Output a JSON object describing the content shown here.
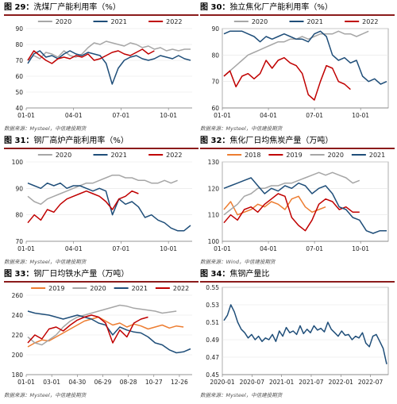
{
  "source_text": "数据来源：Mysteel，中信建投期货",
  "source_text_wind": "数据来源：Wind，中信建投期货",
  "chart_data": [
    {
      "id": "p29",
      "fig": "图 29：",
      "title": "洗煤厂产能利用率（%）",
      "type": "line",
      "source_key": "source_text",
      "ylim": [
        40,
        90
      ],
      "yticks": [
        40,
        50,
        60,
        70,
        80,
        90
      ],
      "xticks": [
        "01-01",
        "04-01",
        "07-01",
        "10-01"
      ],
      "framed": false,
      "series": [
        {
          "name": "2020",
          "color": "#a6a6a6",
          "y": [
            70,
            73,
            71,
            75,
            74,
            72,
            76,
            73,
            72,
            74,
            78,
            81,
            80,
            82,
            81,
            80,
            79,
            81,
            80,
            78,
            79,
            77,
            78,
            76,
            77,
            76,
            77,
            77
          ]
        },
        {
          "name": "2021",
          "color": "#1f4e79",
          "y": [
            68,
            74,
            76,
            72,
            73,
            71,
            74,
            76,
            74,
            73,
            75,
            74,
            73,
            68,
            55,
            65,
            70,
            72,
            73,
            71,
            70,
            71,
            73,
            72,
            71,
            73,
            71,
            70
          ]
        },
        {
          "name": "2022",
          "color": "#c00000",
          "y": [
            70,
            76,
            73,
            70,
            68,
            71,
            72,
            71,
            73,
            72,
            74,
            70,
            71,
            73,
            75,
            76,
            74,
            73,
            75,
            77,
            74,
            76
          ]
        }
      ]
    },
    {
      "id": "p30",
      "fig": "图 30：",
      "title": "独立焦化厂产能利用率（%）",
      "type": "line",
      "source_key": "source_text",
      "ylim": [
        60,
        90
      ],
      "yticks": [
        60,
        70,
        80,
        90
      ],
      "xticks": [
        "01-01",
        "04-01",
        "07-01",
        "10-01"
      ],
      "framed": true,
      "series": [
        {
          "name": "2020",
          "color": "#a6a6a6",
          "y": [
            72,
            74,
            76,
            78,
            80,
            81,
            82,
            83,
            84,
            85,
            85,
            86,
            86,
            87,
            86,
            87,
            88,
            88,
            88,
            89,
            88,
            88,
            87,
            88,
            89
          ]
        },
        {
          "name": "2021",
          "color": "#1f4e79",
          "y": [
            88,
            89,
            89,
            89,
            88,
            87,
            85,
            87,
            86,
            87,
            88,
            87,
            86,
            86,
            85,
            88,
            89,
            87,
            80,
            78,
            79,
            77,
            78,
            72,
            70,
            71,
            69,
            70
          ]
        },
        {
          "name": "2022",
          "color": "#c00000",
          "y": [
            72,
            74,
            68,
            72,
            73,
            71,
            73,
            78,
            75,
            78,
            79,
            77,
            76,
            73,
            65,
            63,
            70,
            76,
            75,
            70,
            69,
            67
          ]
        }
      ]
    },
    {
      "id": "p31",
      "fig": "图 31：",
      "title": "钢厂高炉产能利用率（%）",
      "type": "line",
      "source_key": "source_text",
      "ylim": [
        70,
        100
      ],
      "yticks": [
        70,
        80,
        90,
        100
      ],
      "xticks": [
        "01-01",
        "04-01",
        "07-01",
        "10-01"
      ],
      "framed": false,
      "series": [
        {
          "name": "2020",
          "color": "#a6a6a6",
          "y": [
            87,
            85,
            84,
            86,
            87,
            88,
            89,
            90,
            91,
            92,
            92,
            93,
            94,
            95,
            95,
            94,
            94,
            93,
            93,
            92,
            92,
            93,
            92,
            93
          ]
        },
        {
          "name": "2021",
          "color": "#1f4e79",
          "y": [
            92,
            91,
            90,
            92,
            91,
            92,
            90,
            91,
            91,
            90,
            89,
            90,
            89,
            80,
            86,
            84,
            85,
            83,
            79,
            80,
            78,
            77,
            75,
            74,
            74,
            76
          ]
        },
        {
          "name": "2022",
          "color": "#c00000",
          "y": [
            77,
            80,
            78,
            82,
            81,
            84,
            86,
            87,
            88,
            89,
            88,
            87,
            85,
            82,
            86,
            87,
            89,
            88
          ]
        }
      ]
    },
    {
      "id": "p32",
      "fig": "图 32：",
      "title": "焦化厂日均焦炭产量（万吨）",
      "type": "line",
      "source_key": "source_text_wind",
      "ylim": [
        100,
        130
      ],
      "yticks": [
        100,
        110,
        120,
        130
      ],
      "xticks": [
        "01-01",
        "04-01",
        "07-01",
        "10-01"
      ],
      "framed": true,
      "series": [
        {
          "name": "2018",
          "color": "#ed7d31",
          "y": [
            112,
            115,
            110,
            111,
            112,
            114,
            113,
            115,
            114,
            112,
            116,
            117,
            113,
            111,
            112,
            113
          ]
        },
        {
          "name": "2019",
          "color": "#c00000",
          "y": [
            107,
            110,
            108,
            112,
            113,
            111,
            114,
            116,
            118,
            117,
            109,
            106,
            104,
            108,
            114,
            116,
            115,
            112,
            113,
            111,
            111
          ]
        },
        {
          "name": "2020",
          "color": "#a6a6a6",
          "y": [
            110,
            112,
            114,
            117,
            118,
            120,
            120,
            121,
            121,
            122,
            122,
            123,
            124,
            125,
            126,
            125,
            126,
            125,
            124,
            122,
            123
          ]
        },
        {
          "name": "2021",
          "color": "#1f4e79",
          "y": [
            120,
            121,
            122,
            123,
            124,
            121,
            118,
            120,
            119,
            121,
            120,
            122,
            121,
            118,
            120,
            121,
            118,
            113,
            112,
            109,
            108,
            104,
            103,
            104,
            104
          ]
        }
      ]
    },
    {
      "id": "p33",
      "fig": "图 33：",
      "title": "钢厂日均铁水产量（万吨）",
      "type": "line",
      "source_key": "source_text",
      "ylim": [
        180,
        260
      ],
      "yticks": [
        180,
        200,
        220,
        240,
        260
      ],
      "xticks": [
        "01-01",
        "03-01",
        "04-30",
        "06-29",
        "08-28",
        "10-27",
        "12-26"
      ],
      "framed": false,
      "series": [
        {
          "name": "2019",
          "color": "#ed7d31",
          "y": [
            208,
            212,
            215,
            214,
            218,
            222,
            226,
            230,
            234,
            236,
            238,
            234,
            230,
            232,
            228,
            231,
            229,
            226,
            228,
            230,
            227,
            229,
            228
          ]
        },
        {
          "name": "2020",
          "color": "#a6a6a6",
          "y": [
            218,
            212,
            210,
            215,
            220,
            228,
            234,
            238,
            240,
            242,
            244,
            246,
            248,
            250,
            249,
            247,
            246,
            245,
            244,
            242,
            243,
            244
          ]
        },
        {
          "name": "2021",
          "color": "#1f4e79",
          "y": [
            244,
            242,
            241,
            240,
            238,
            236,
            238,
            240,
            238,
            236,
            232,
            230,
            220,
            228,
            225,
            223,
            222,
            218,
            212,
            210,
            205,
            202,
            203,
            206
          ]
        },
        {
          "name": "2022",
          "color": "#c00000",
          "y": [
            212,
            220,
            216,
            226,
            228,
            224,
            230,
            235,
            238,
            240,
            238,
            232,
            212,
            225,
            218,
            232,
            236,
            238
          ]
        }
      ]
    },
    {
      "id": "p34",
      "fig": "图 34：",
      "title": "焦钢产量比",
      "type": "line",
      "source_key": "source_text",
      "ylim": [
        0.45,
        0.55
      ],
      "yticks": [
        0.45,
        0.47,
        0.49,
        0.51,
        0.53,
        0.55
      ],
      "xticks": [
        "2020-01",
        "2020-07",
        "2021-01",
        "2021-07",
        "2022-01",
        "2022-07"
      ],
      "framed": true,
      "series": [
        {
          "name": "",
          "color": "#1f4e79",
          "y": [
            0.512,
            0.518,
            0.53,
            0.522,
            0.51,
            0.502,
            0.498,
            0.492,
            0.496,
            0.49,
            0.494,
            0.488,
            0.492,
            0.49,
            0.496,
            0.488,
            0.5,
            0.494,
            0.504,
            0.498,
            0.5,
            0.496,
            0.506,
            0.497,
            0.502,
            0.498,
            0.506,
            0.501,
            0.503,
            0.499,
            0.51,
            0.502,
            0.498,
            0.494,
            0.5,
            0.495,
            0.496,
            0.49,
            0.494,
            0.492,
            0.498,
            0.486,
            0.482,
            0.494,
            0.496,
            0.488,
            0.48,
            0.462
          ]
        }
      ]
    }
  ]
}
